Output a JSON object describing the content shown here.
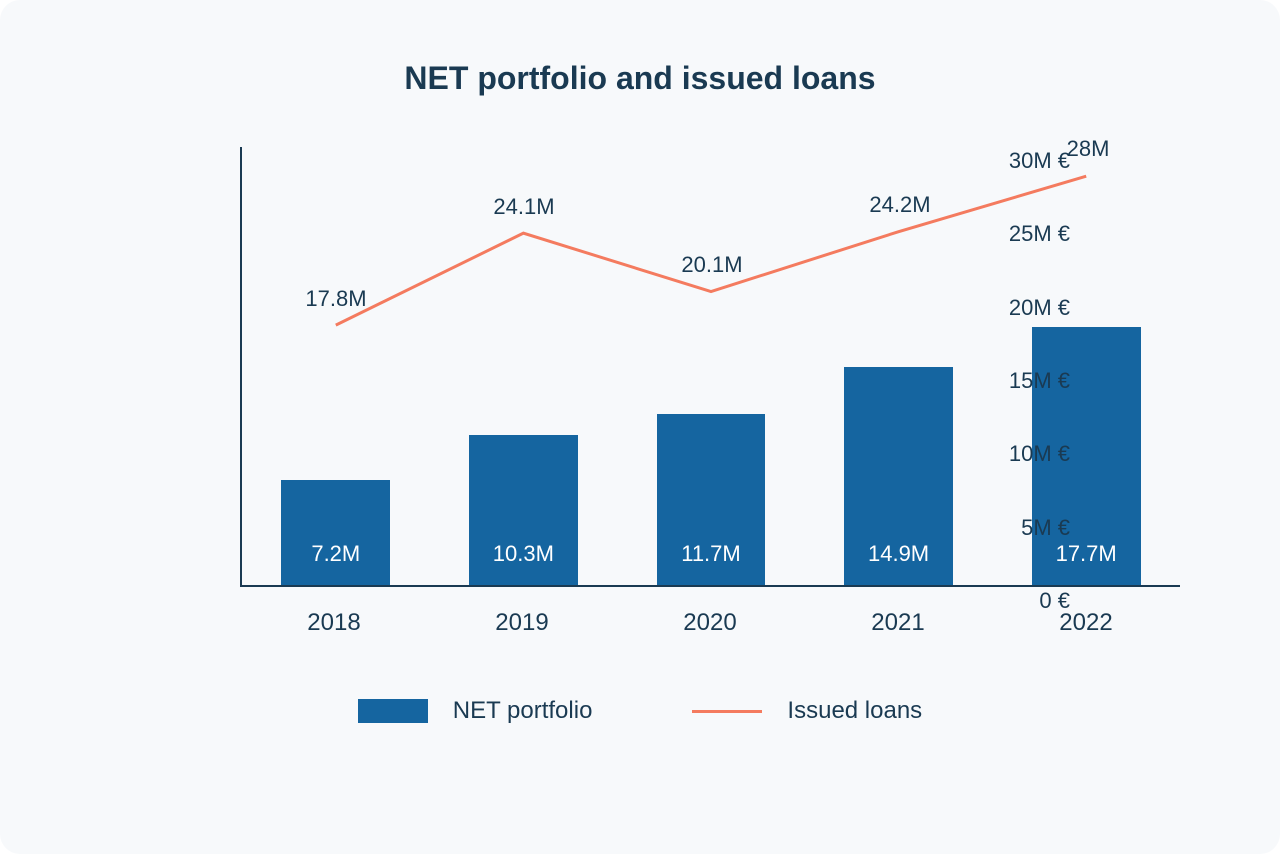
{
  "chart": {
    "title": "NET portfolio and issued loans",
    "background_color": "#f7f9fb",
    "title_color": "#1a3a52",
    "title_fontsize": 32,
    "axis_color": "#1a3a52",
    "label_color": "#1a3a52",
    "label_fontsize": 22,
    "categories": [
      "2018",
      "2019",
      "2020",
      "2021",
      "2022"
    ],
    "ylim": [
      0,
      30
    ],
    "ytick_step": 5,
    "ytick_labels": [
      "0 €",
      "5M €",
      "10M €",
      "15M €",
      "20M €",
      "25M €",
      "30M €"
    ],
    "bars": {
      "name": "NET portfolio",
      "color": "#1565a0",
      "label_color": "#ffffff",
      "values": [
        7.2,
        10.3,
        11.7,
        14.9,
        17.7
      ],
      "value_labels": [
        "7.2M",
        "10.3M",
        "11.7M",
        "14.9M",
        "17.7M"
      ],
      "bar_width": 0.58
    },
    "line": {
      "name": "Issued loans",
      "color": "#f47b5f",
      "stroke_width": 3,
      "values": [
        17.8,
        24.1,
        20.1,
        24.2,
        28
      ],
      "value_labels": [
        "17.8M",
        "24.1M",
        "20.1M",
        "24.2M",
        "28M"
      ]
    },
    "legend": {
      "items": [
        {
          "type": "bar",
          "label": "NET portfolio"
        },
        {
          "type": "line",
          "label": "Issued loans"
        }
      ]
    }
  }
}
